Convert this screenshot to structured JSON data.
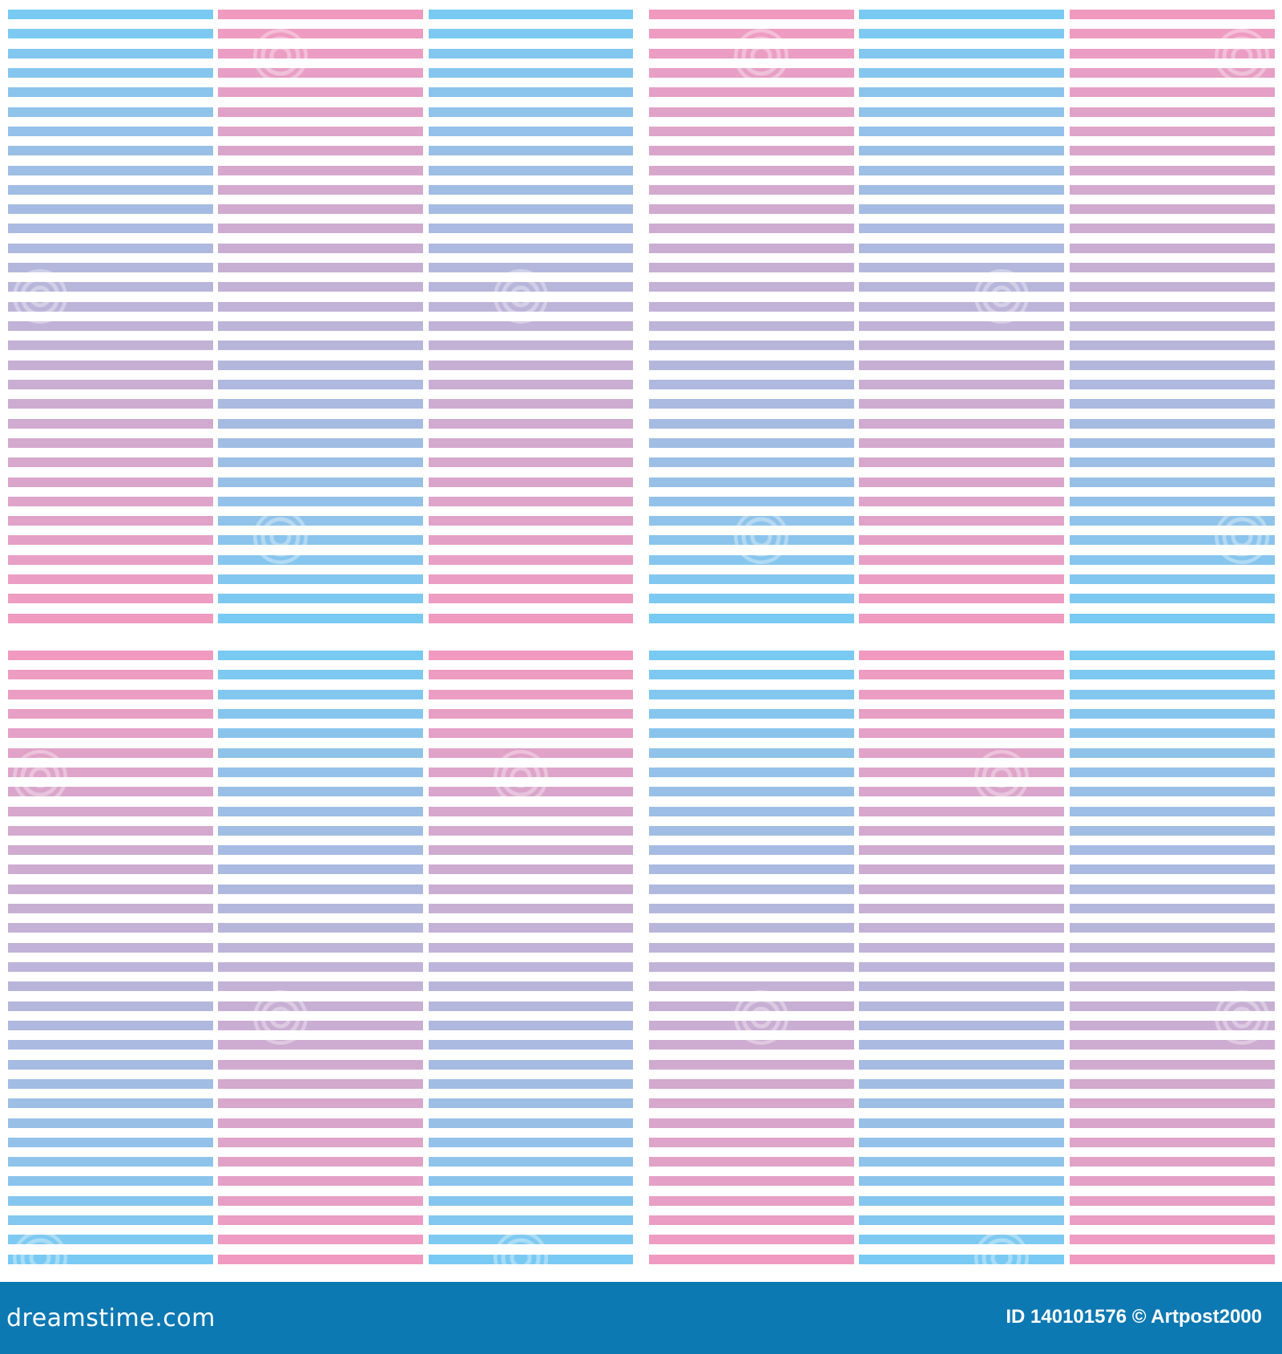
{
  "image": {
    "description_colors": {
      "background": "#ffffff",
      "blue": "#78caf3",
      "pink": "#f19ac0",
      "mid_purple": "#c2b3d6",
      "footer": "#0d79b3"
    },
    "grid": {
      "quadrant_rows": 2,
      "quadrant_cols": 2,
      "columns_per_quadrant": 3,
      "stripes_per_block": 32,
      "pattern": "alternating blue-to-pink and pink-to-blue gradient stripe columns"
    },
    "watermark_icon": "dreamstime-swirl-icon"
  },
  "footer": {
    "logo_text": "dreamstime.com",
    "credit_text": "ID 140101576 © Artpost2000"
  }
}
